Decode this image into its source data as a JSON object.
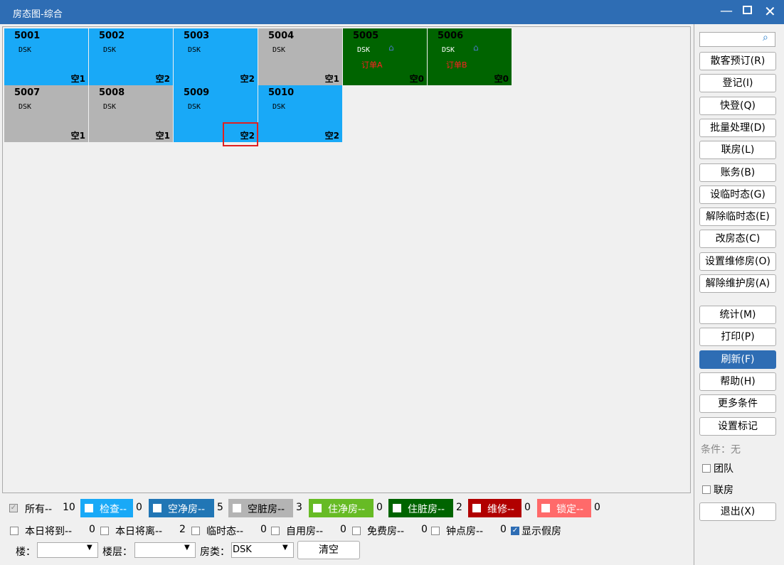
{
  "window": {
    "title": "房态图-综合"
  },
  "rooms": [
    {
      "number": "5001",
      "type": "DSK",
      "status": "空1",
      "color": "#19a9f7"
    },
    {
      "number": "5002",
      "type": "DSK",
      "status": "空2",
      "color": "#19a9f7"
    },
    {
      "number": "5003",
      "type": "DSK",
      "status": "空2",
      "color": "#19a9f7"
    },
    {
      "number": "5004",
      "type": "DSK",
      "status": "空1",
      "color": "#b4b4b4"
    },
    {
      "number": "5005",
      "type": "DSK",
      "status": "空0",
      "order": "订单A",
      "color": "#006400"
    },
    {
      "number": "5006",
      "type": "DSK",
      "status": "空0",
      "order": "订单B",
      "color": "#006400"
    },
    {
      "number": "5007",
      "type": "DSK",
      "status": "空1",
      "color": "#b4b4b4"
    },
    {
      "number": "5008",
      "type": "DSK",
      "status": "空1",
      "color": "#b4b4b4"
    },
    {
      "number": "5009",
      "type": "DSK",
      "status": "空2",
      "color": "#19a9f7"
    },
    {
      "number": "5010",
      "type": "DSK",
      "status": "空2",
      "color": "#19a9f7"
    }
  ],
  "sidebar": {
    "buttons": [
      "散客预订(R)",
      "登记(I)",
      "快登(Q)",
      "批量处理(D)",
      "联房(L)",
      "账务(B)",
      "设临时态(G)",
      "解除临时态(E)",
      "改房态(C)",
      "设置维修房(O)",
      "解除维护房(A)"
    ],
    "lower_buttons": [
      "统计(M)",
      "打印(P)",
      "刷新(F)",
      "帮助(H)",
      "更多条件",
      "设置标记"
    ],
    "condition": "条件：无",
    "checks": [
      "团队",
      "联房"
    ],
    "exit": "退出(X)"
  },
  "legend": [
    {
      "label": "所有--",
      "count": 10,
      "checked": true
    },
    {
      "label": "检查--",
      "count": 0,
      "color": "#19a9f7"
    },
    {
      "label": "空净房--",
      "count": 5,
      "color": "#2176b5"
    },
    {
      "label": "空脏房--",
      "count": 3,
      "color": "#b4b4b4"
    },
    {
      "label": "住净房--",
      "count": 0,
      "color": "#67bb25"
    },
    {
      "label": "住脏房--",
      "count": 2,
      "color": "#006400"
    },
    {
      "label": "维修--",
      "count": 0,
      "color": "#b10000"
    },
    {
      "label": "锁定--",
      "count": 0,
      "color": "#ff6a6a"
    }
  ],
  "filters": [
    {
      "label": "本日将到--",
      "count": 0
    },
    {
      "label": "本日将离--",
      "count": 2
    },
    {
      "label": "临时态--",
      "count": 0
    },
    {
      "label": "自用房--",
      "count": 0
    },
    {
      "label": "免费房--",
      "count": 0
    },
    {
      "label": "钟点房--",
      "count": 0
    }
  ],
  "show_fake": {
    "label": "显示假房",
    "checked": true
  },
  "selectors": {
    "building": "楼：",
    "floor": "楼层：",
    "room_type": "房类：",
    "room_type_value": "DSK",
    "clear": "清空"
  }
}
